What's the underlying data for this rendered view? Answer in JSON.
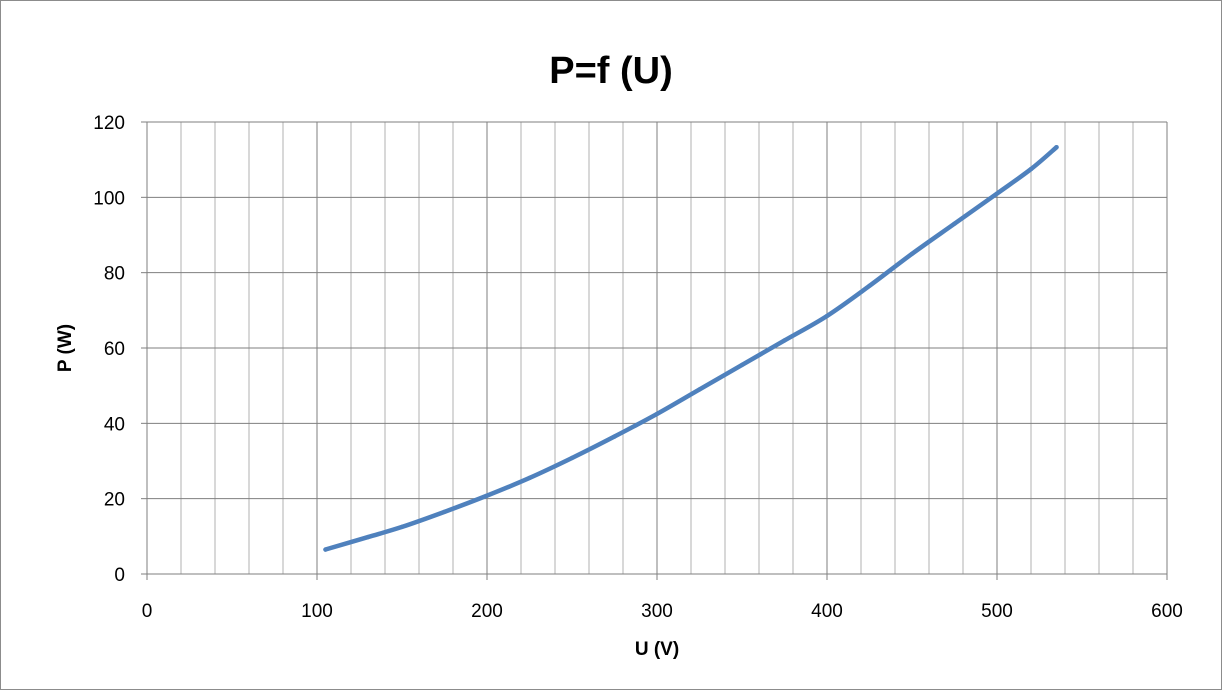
{
  "chart_data": {
    "type": "line",
    "title": "P=f (U)",
    "xlabel": "U (V)",
    "ylabel": "P (W)",
    "xlim": [
      0,
      600
    ],
    "ylim": [
      0,
      120
    ],
    "x_ticks": [
      0,
      100,
      200,
      300,
      400,
      500,
      600
    ],
    "y_ticks": [
      0,
      20,
      40,
      60,
      80,
      100,
      120
    ],
    "x_minor_step": 20,
    "grid": true,
    "legend": "none",
    "series": [
      {
        "color": "#4f81bd",
        "x": [
          105,
          130,
          150,
          175,
          200,
          225,
          250,
          275,
          300,
          325,
          350,
          375,
          400,
          425,
          450,
          475,
          500,
          520,
          535
        ],
        "y": [
          6.5,
          9.8,
          12.5,
          16.5,
          20.8,
          25.5,
          30.8,
          36.5,
          42.5,
          49,
          55.5,
          62,
          68.5,
          76.5,
          85,
          93,
          101,
          107.5,
          113.3
        ]
      }
    ]
  }
}
